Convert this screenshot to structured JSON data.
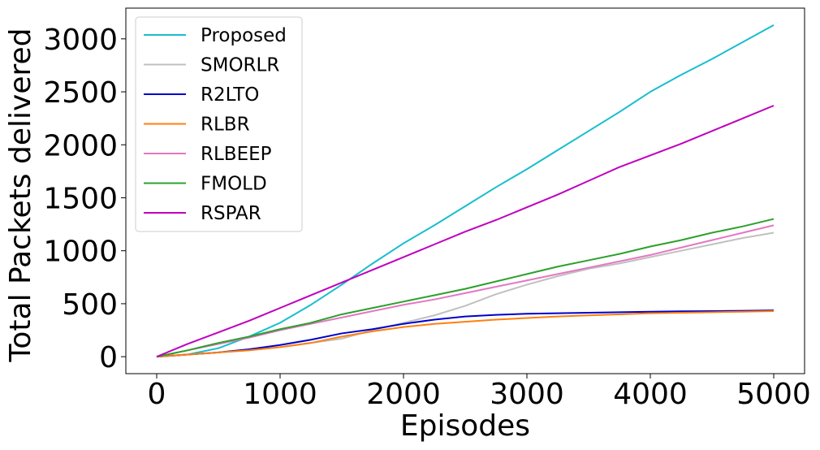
{
  "chart_data": {
    "type": "line",
    "title": "",
    "xlabel": "Episodes",
    "ylabel": "Total Packets delivered",
    "xlim": [
      -250,
      5250
    ],
    "ylim": [
      -160,
      3290
    ],
    "xticks": [
      0,
      1000,
      2000,
      3000,
      4000,
      5000
    ],
    "yticks": [
      0,
      500,
      1000,
      1500,
      2000,
      2500,
      3000
    ],
    "grid": false,
    "legend_position": "top-left",
    "x": [
      0,
      250,
      500,
      750,
      1000,
      1250,
      1500,
      1750,
      2000,
      2250,
      2500,
      2750,
      3000,
      3250,
      3500,
      3750,
      4000,
      4250,
      4500,
      4750,
      5000
    ],
    "series": [
      {
        "name": "Proposed",
        "color": "#17becf",
        "values": [
          0,
          20,
          80,
          190,
          320,
          490,
          680,
          880,
          1070,
          1240,
          1420,
          1600,
          1770,
          1950,
          2130,
          2310,
          2500,
          2660,
          2810,
          2970,
          3130
        ]
      },
      {
        "name": "SMORLR",
        "color": "#c0c0c0",
        "values": [
          0,
          20,
          40,
          60,
          90,
          130,
          170,
          250,
          320,
          390,
          480,
          590,
          680,
          760,
          830,
          880,
          940,
          1000,
          1060,
          1120,
          1170
        ]
      },
      {
        "name": "R2LTO",
        "color": "#0000cd",
        "values": [
          0,
          20,
          40,
          70,
          110,
          160,
          220,
          260,
          310,
          350,
          380,
          395,
          405,
          410,
          415,
          420,
          425,
          428,
          430,
          433,
          437
        ]
      },
      {
        "name": "RLBR",
        "color": "#ff7f0e",
        "values": [
          0,
          20,
          40,
          60,
          90,
          130,
          190,
          240,
          280,
          310,
          330,
          350,
          365,
          380,
          390,
          400,
          410,
          415,
          420,
          425,
          430
        ]
      },
      {
        "name": "RLBEEP",
        "color": "#e377c2",
        "values": [
          0,
          60,
          120,
          180,
          250,
          310,
          370,
          430,
          490,
          540,
          600,
          660,
          720,
          780,
          840,
          900,
          960,
          1030,
          1100,
          1170,
          1240
        ]
      },
      {
        "name": "FMOLD",
        "color": "#2ca02c",
        "values": [
          0,
          60,
          130,
          190,
          260,
          320,
          400,
          460,
          520,
          580,
          640,
          710,
          780,
          850,
          910,
          970,
          1040,
          1100,
          1170,
          1230,
          1300
        ]
      },
      {
        "name": "RSPAR",
        "color": "#bf00bf",
        "values": [
          0,
          120,
          230,
          340,
          460,
          580,
          700,
          820,
          940,
          1060,
          1180,
          1290,
          1410,
          1530,
          1660,
          1790,
          1900,
          2010,
          2130,
          2250,
          2370
        ]
      }
    ]
  }
}
